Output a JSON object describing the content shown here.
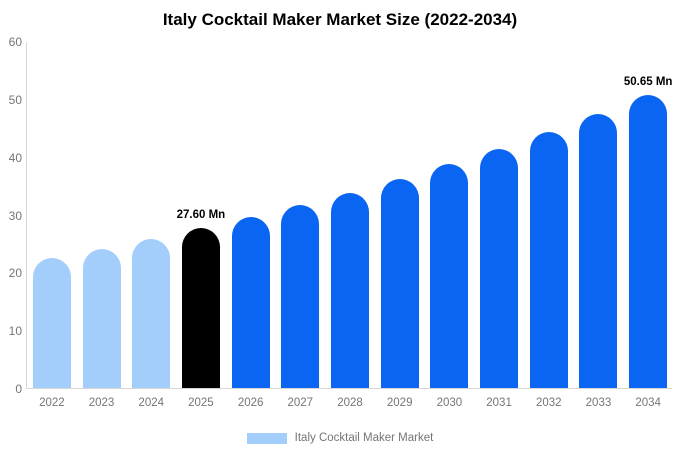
{
  "title": "Italy Cocktail Maker Market Size (2022-2034)",
  "legend": {
    "label": "Italy Cocktail Maker Market",
    "swatch_color": "#A3CDFB"
  },
  "colors": {
    "historical": "#A3CDFB",
    "highlight": "#000000",
    "forecast": "#0A66F2",
    "axis_line": "#D6D6D6",
    "tick_text": "#757575",
    "title_text": "#000000"
  },
  "chart_data": {
    "type": "bar",
    "title": "Italy Cocktail Maker Market Size (2022-2034)",
    "categories": [
      "2022",
      "2023",
      "2024",
      "2025",
      "2026",
      "2027",
      "2028",
      "2029",
      "2030",
      "2031",
      "2032",
      "2033",
      "2034"
    ],
    "values": [
      22.5,
      24.1,
      25.8,
      27.6,
      29.5,
      31.6,
      33.8,
      36.1,
      38.7,
      41.4,
      44.3,
      47.4,
      50.65
    ],
    "bar_roles": [
      "historical",
      "historical",
      "historical",
      "highlight",
      "forecast",
      "forecast",
      "forecast",
      "forecast",
      "forecast",
      "forecast",
      "forecast",
      "forecast",
      "forecast"
    ],
    "annotations": [
      {
        "category": "2025",
        "text": "27.60 Mn"
      },
      {
        "category": "2034",
        "text": "50.65 Mn"
      }
    ],
    "xlabel": "",
    "ylabel": "",
    "ylim": [
      0,
      60
    ],
    "yticks": [
      0,
      10,
      20,
      30,
      40,
      50,
      60
    ],
    "grid": false,
    "legend_position": "bottom",
    "legend_entries": [
      "Italy Cocktail Maker Market"
    ]
  }
}
